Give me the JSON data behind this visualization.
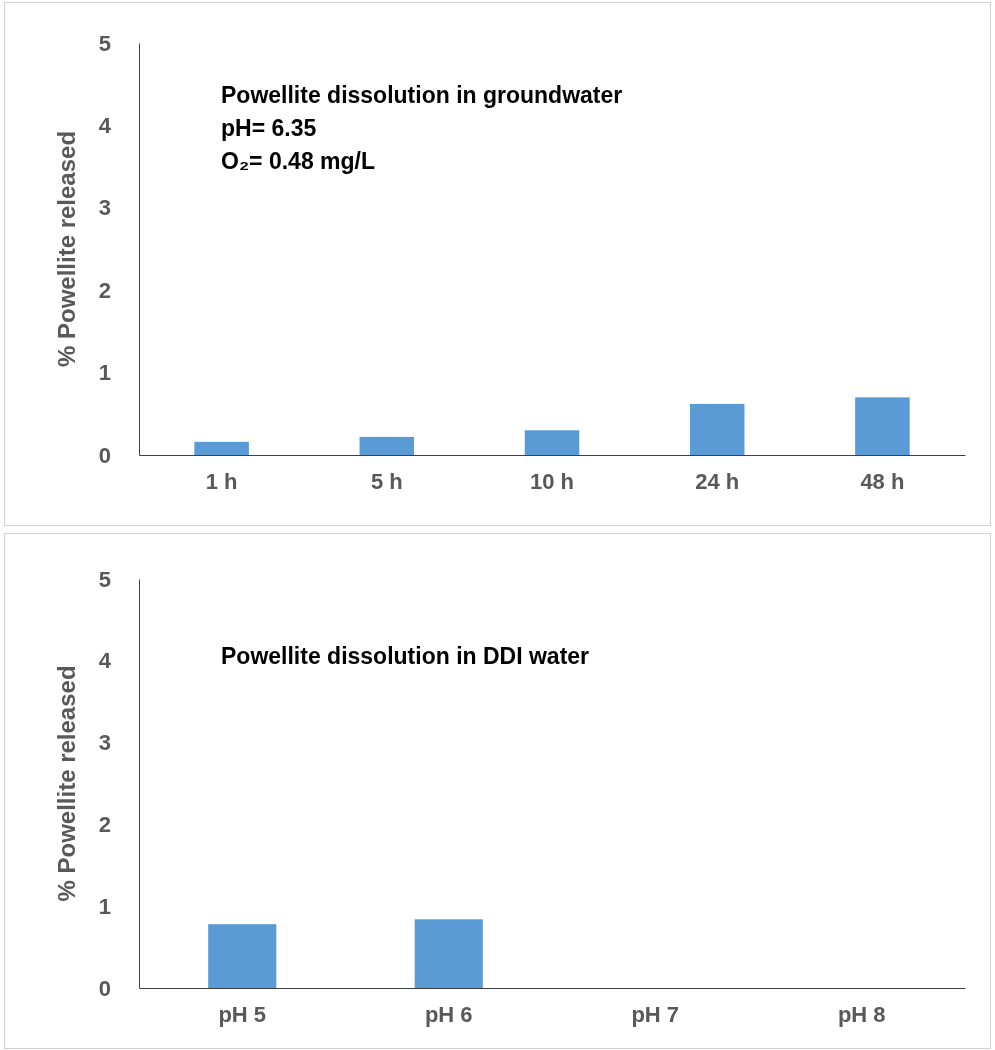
{
  "chart_data": [
    {
      "type": "bar",
      "title": "Powellite dissolution in groundwater",
      "annotations": [
        "pH= 6.35",
        "O₂= 0.48 mg/L"
      ],
      "ylabel": "% Powellite released",
      "categories": [
        "1 h",
        "5 h",
        "10 h",
        "24 h",
        "48 h"
      ],
      "series": [
        {
          "color": "#5b9bd5",
          "values": [
            0.16,
            0.22,
            0.3,
            0.62,
            0.7
          ]
        }
      ],
      "ylim": [
        0,
        5
      ],
      "yticks": [
        0,
        1,
        2,
        3,
        4,
        5
      ]
    },
    {
      "type": "bar",
      "title": "Powellite dissolution in DDI water",
      "ylabel": "% Powellite released",
      "categories": [
        "pH 5",
        "pH 6",
        "pH 7",
        "pH 8"
      ],
      "series": [
        {
          "color": "#5b9bd5",
          "values": [
            0.78,
            0.84,
            null,
            null
          ]
        }
      ],
      "ylim": [
        0,
        5
      ],
      "yticks": [
        0,
        1,
        2,
        3,
        4,
        5
      ]
    }
  ]
}
